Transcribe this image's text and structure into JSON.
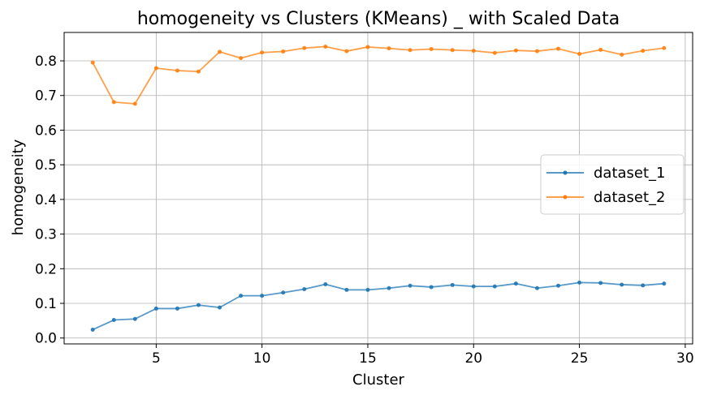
{
  "chart_data": {
    "type": "line",
    "title": "homogeneity vs Clusters (KMeans) _ with Scaled Data",
    "xlabel": "Cluster",
    "ylabel": "homogeneity",
    "xlim": [
      0.65,
      30.35
    ],
    "ylim": [
      -0.017,
      0.882
    ],
    "xticks": [
      5,
      10,
      15,
      20,
      25,
      30
    ],
    "xtick_labels": [
      "5",
      "10",
      "15",
      "20",
      "25",
      "30"
    ],
    "yticks": [
      0.0,
      0.1,
      0.2,
      0.3,
      0.4,
      0.5,
      0.6,
      0.7,
      0.8
    ],
    "ytick_labels": [
      "0.0",
      "0.1",
      "0.2",
      "0.3",
      "0.4",
      "0.5",
      "0.6",
      "0.7",
      "0.8"
    ],
    "grid": true,
    "legend_position": "center-right",
    "x": [
      2,
      3,
      4,
      5,
      6,
      7,
      8,
      9,
      10,
      11,
      12,
      13,
      14,
      15,
      16,
      17,
      18,
      19,
      20,
      21,
      22,
      23,
      24,
      25,
      26,
      27,
      28,
      29
    ],
    "series": [
      {
        "name": "dataset_1",
        "color": "#1f77b4",
        "values": [
          0.024,
          0.052,
          0.055,
          0.085,
          0.085,
          0.095,
          0.088,
          0.122,
          0.122,
          0.131,
          0.141,
          0.155,
          0.139,
          0.139,
          0.144,
          0.151,
          0.147,
          0.153,
          0.149,
          0.149,
          0.157,
          0.144,
          0.151,
          0.16,
          0.159,
          0.154,
          0.152,
          0.157
        ]
      },
      {
        "name": "dataset_2",
        "color": "#ff7f0e",
        "values": [
          0.795,
          0.681,
          0.676,
          0.779,
          0.772,
          0.769,
          0.826,
          0.808,
          0.824,
          0.827,
          0.837,
          0.841,
          0.828,
          0.84,
          0.836,
          0.831,
          0.834,
          0.831,
          0.829,
          0.823,
          0.83,
          0.828,
          0.835,
          0.82,
          0.832,
          0.818,
          0.829,
          0.837
        ]
      }
    ]
  }
}
